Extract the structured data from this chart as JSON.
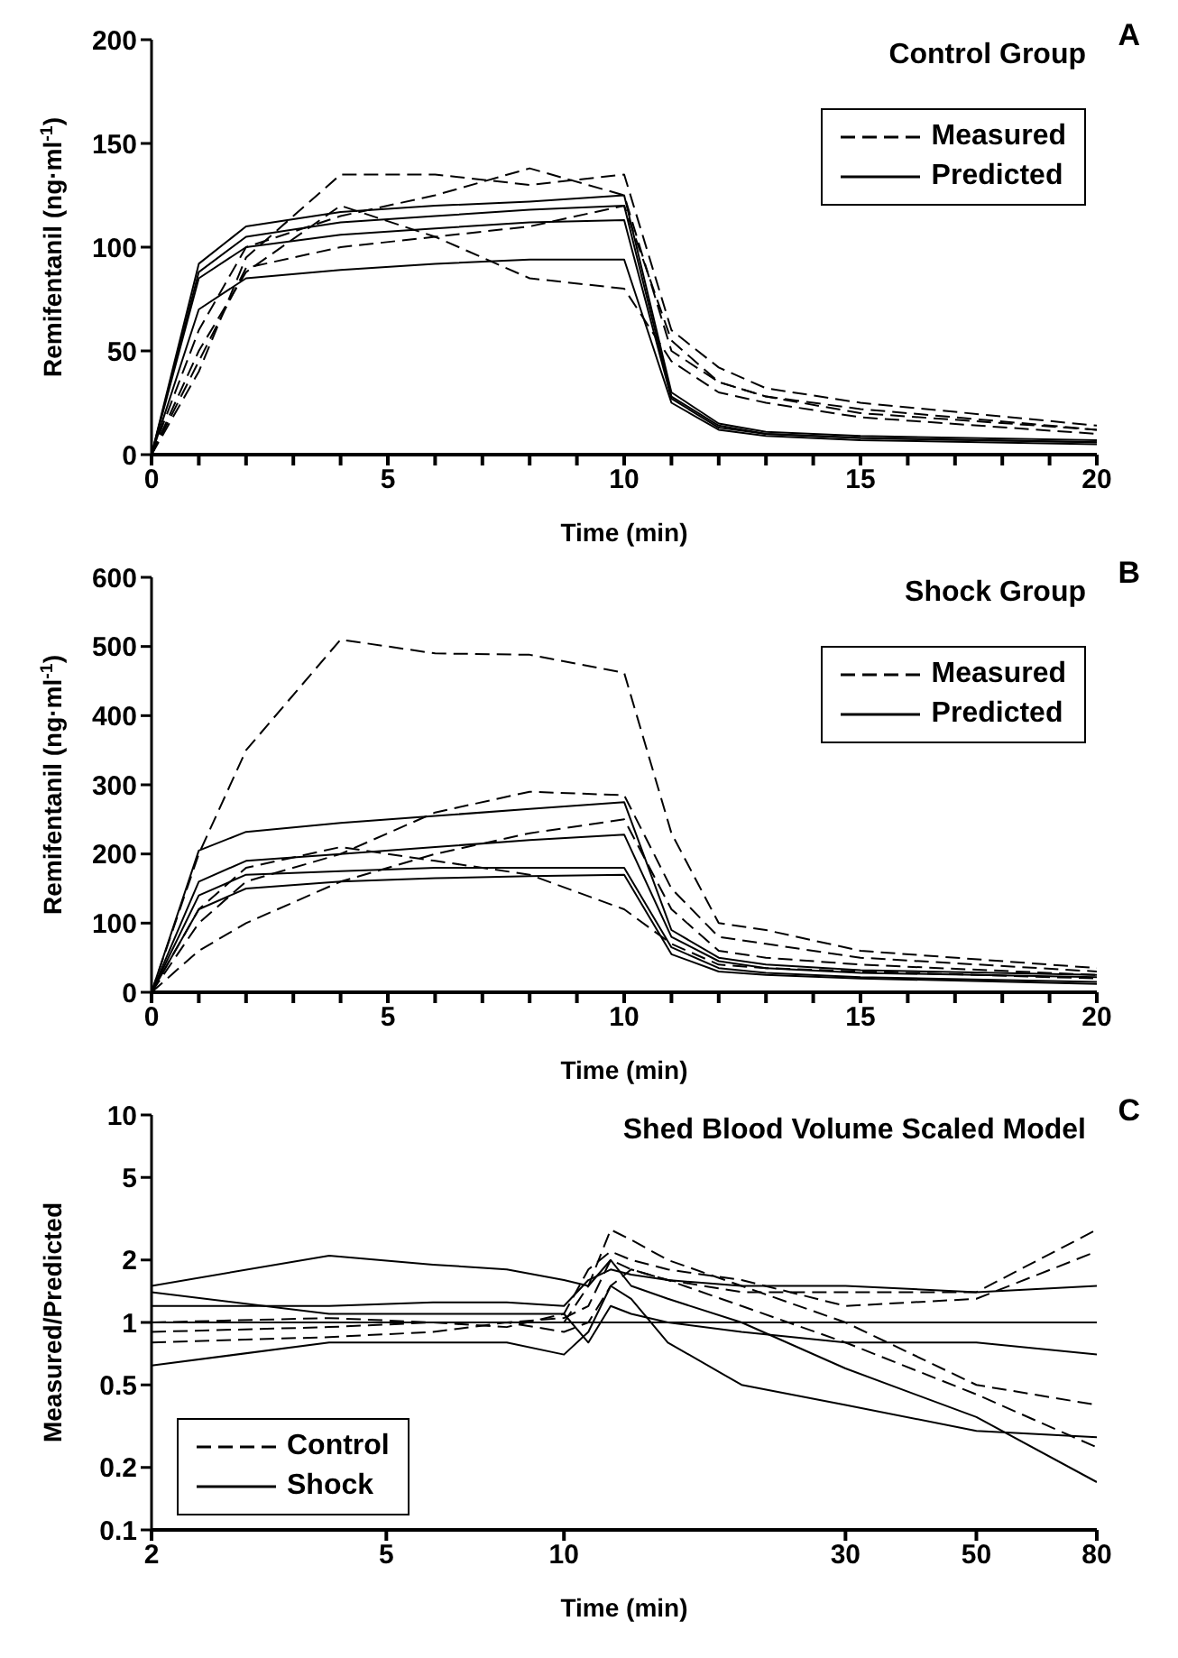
{
  "chart_data": [
    {
      "type": "line",
      "title": "Control Group",
      "xlabel": "Time (min)",
      "ylabel": "Remifentanil (ng·ml$^{-1}$)",
      "annotations": [
        "A"
      ],
      "legend": "top right",
      "marker": "none",
      "x": [
        0,
        1,
        2,
        4,
        6,
        8,
        10,
        11,
        12,
        13,
        15,
        20
      ],
      "xlim": [
        0,
        20
      ],
      "xticks": [
        0,
        {
          "value": 1,
          "label": null
        },
        {
          "value": 2,
          "label": null
        },
        {
          "value": 3,
          "label": null
        },
        {
          "value": 4,
          "label": null
        },
        5,
        {
          "value": 6,
          "label": null
        },
        {
          "value": 7,
          "label": null
        },
        {
          "value": 8,
          "label": null
        },
        {
          "value": 9,
          "label": null
        },
        10,
        {
          "value": 11,
          "label": null
        },
        {
          "value": 12,
          "label": null
        },
        {
          "value": 13,
          "label": null
        },
        {
          "value": 14,
          "label": null
        },
        15,
        {
          "value": 16,
          "label": null
        },
        {
          "value": 17,
          "label": null
        },
        {
          "value": 18,
          "label": null
        },
        {
          "value": 19,
          "label": null
        },
        20
      ],
      "ylim": [
        0,
        200
      ],
      "yticks": [
        0,
        50,
        100,
        150,
        200
      ],
      "series": [
        {
          "name": "Measured",
          "color": "#000000",
          "line_style": "dashed",
          "values": [
            0,
            45,
            90,
            100,
            105,
            110,
            120,
            55,
            35,
            28,
            20,
            12
          ]
        },
        {
          "color": "#000000",
          "line_style": "dashed",
          "values": [
            0,
            40,
            95,
            135,
            135,
            130,
            135,
            60,
            42,
            32,
            25,
            14
          ]
        },
        {
          "color": "#000000",
          "line_style": "dashed",
          "values": [
            0,
            50,
            88,
            120,
            105,
            85,
            80,
            45,
            30,
            25,
            18,
            10
          ]
        },
        {
          "color": "#000000",
          "line_style": "dashed",
          "values": [
            0,
            60,
            100,
            115,
            125,
            138,
            125,
            50,
            35,
            28,
            22,
            12
          ]
        },
        {
          "name": "Predicted",
          "color": "#000000",
          "line_style": "solid",
          "values": [
            0,
            92,
            110,
            117,
            120,
            122,
            125,
            30,
            15,
            11,
            9,
            7
          ]
        },
        {
          "color": "#000000",
          "line_style": "solid",
          "values": [
            0,
            88,
            105,
            112,
            115,
            118,
            120,
            28,
            14,
            10,
            8,
            6
          ]
        },
        {
          "color": "#000000",
          "line_style": "solid",
          "values": [
            0,
            70,
            85,
            89,
            92,
            94,
            94,
            25,
            12,
            9,
            7,
            5
          ]
        },
        {
          "color": "#000000",
          "line_style": "solid",
          "values": [
            0,
            85,
            100,
            106,
            109,
            112,
            113,
            27,
            13,
            10,
            8,
            6
          ]
        }
      ]
    },
    {
      "type": "line",
      "title": "Shock Group",
      "xlabel": "Time (min)",
      "ylabel": "Remifentanil (ng·ml$^{-1}$)",
      "annotations": [
        "B"
      ],
      "legend": "top right",
      "marker": "none",
      "x": [
        0,
        1,
        2,
        4,
        6,
        8,
        10,
        11,
        12,
        13,
        15,
        20
      ],
      "xlim": [
        0,
        20
      ],
      "xticks": [
        0,
        {
          "value": 1,
          "label": null
        },
        {
          "value": 2,
          "label": null
        },
        {
          "value": 3,
          "label": null
        },
        {
          "value": 4,
          "label": null
        },
        5,
        {
          "value": 6,
          "label": null
        },
        {
          "value": 7,
          "label": null
        },
        {
          "value": 8,
          "label": null
        },
        {
          "value": 9,
          "label": null
        },
        10,
        {
          "value": 11,
          "label": null
        },
        {
          "value": 12,
          "label": null
        },
        {
          "value": 13,
          "label": null
        },
        {
          "value": 14,
          "label": null
        },
        15,
        {
          "value": 16,
          "label": null
        },
        {
          "value": 17,
          "label": null
        },
        {
          "value": 18,
          "label": null
        },
        {
          "value": 19,
          "label": null
        },
        20
      ],
      "ylim": [
        0,
        600
      ],
      "yticks": [
        0,
        100,
        200,
        300,
        400,
        500,
        600
      ],
      "series": [
        {
          "name": "Measured",
          "color": "#000000",
          "line_style": "dashed",
          "values": [
            0,
            200,
            350,
            510,
            490,
            488,
            462,
            230,
            100,
            90,
            60,
            35
          ]
        },
        {
          "color": "#000000",
          "line_style": "dashed",
          "values": [
            0,
            100,
            160,
            200,
            260,
            290,
            285,
            150,
            80,
            70,
            50,
            30
          ]
        },
        {
          "color": "#000000",
          "line_style": "dashed",
          "values": [
            0,
            60,
            100,
            160,
            200,
            230,
            250,
            120,
            60,
            50,
            40,
            25
          ]
        },
        {
          "color": "#000000",
          "line_style": "dashed",
          "values": [
            0,
            120,
            180,
            210,
            190,
            170,
            120,
            70,
            40,
            35,
            30,
            20
          ]
        },
        {
          "name": "Predicted",
          "color": "#000000",
          "line_style": "solid",
          "values": [
            0,
            205,
            232,
            245,
            255,
            265,
            275,
            90,
            50,
            40,
            32,
            25
          ]
        },
        {
          "color": "#000000",
          "line_style": "solid",
          "values": [
            0,
            160,
            190,
            200,
            210,
            220,
            228,
            80,
            45,
            35,
            28,
            22
          ]
        },
        {
          "color": "#000000",
          "line_style": "solid",
          "values": [
            0,
            140,
            170,
            175,
            180,
            180,
            180,
            65,
            35,
            28,
            22,
            15
          ]
        },
        {
          "color": "#000000",
          "line_style": "solid",
          "values": [
            0,
            120,
            150,
            160,
            165,
            168,
            170,
            55,
            30,
            25,
            20,
            12
          ]
        }
      ]
    },
    {
      "type": "line",
      "title": "Shed Blood Volume Scaled Model",
      "xlabel": "Time (min)",
      "ylabel": "Measured/Predicted",
      "annotations": [
        "C"
      ],
      "legend": "bottom left",
      "marker": "none",
      "log": "xy",
      "x": [
        2,
        4,
        6,
        8,
        10,
        11,
        12,
        13,
        15,
        20,
        30,
        50,
        80
      ],
      "xlim": [
        2,
        80
      ],
      "xticks": [
        2,
        5,
        10,
        30,
        50,
        80
      ],
      "ylim": [
        0.1,
        10
      ],
      "yticks": [
        0.1,
        0.2,
        0.5,
        1,
        2,
        5,
        10
      ],
      "ref_lines": [
        {
          "axis": "y",
          "value": 1,
          "label": null,
          "color": "#000000"
        }
      ],
      "series": [
        {
          "name": "Control",
          "color": "#000000",
          "line_style": "dashed",
          "values": [
            1.0,
            1.0,
            1.0,
            1.0,
            1.0,
            1.5,
            2.8,
            2.5,
            2.0,
            1.5,
            1.0,
            0.5,
            0.4
          ]
        },
        {
          "color": "#000000",
          "line_style": "dashed",
          "values": [
            0.9,
            0.95,
            1.0,
            1.0,
            1.05,
            1.2,
            2.0,
            1.8,
            1.6,
            1.2,
            0.8,
            0.45,
            0.25
          ]
        },
        {
          "color": "#000000",
          "line_style": "dashed",
          "values": [
            0.8,
            0.85,
            0.9,
            1.0,
            0.9,
            1.0,
            1.5,
            1.8,
            1.6,
            1.4,
            1.4,
            1.4,
            2.8
          ]
        },
        {
          "color": "#000000",
          "line_style": "dashed",
          "values": [
            1.0,
            1.05,
            1.0,
            0.95,
            1.1,
            1.8,
            2.2,
            2.0,
            1.8,
            1.6,
            1.2,
            1.3,
            2.2
          ]
        },
        {
          "name": "Shock",
          "color": "#000000",
          "line_style": "solid",
          "values": [
            1.5,
            2.1,
            1.9,
            1.8,
            1.6,
            1.5,
            2.0,
            1.5,
            1.3,
            1.0,
            0.6,
            0.35,
            0.17
          ]
        },
        {
          "color": "#000000",
          "line_style": "solid",
          "values": [
            1.4,
            1.1,
            1.1,
            1.1,
            1.1,
            0.8,
            1.2,
            1.1,
            1.0,
            0.9,
            0.8,
            0.8,
            0.7
          ]
        },
        {
          "color": "#000000",
          "line_style": "solid",
          "values": [
            0.62,
            0.8,
            0.8,
            0.8,
            0.7,
            0.9,
            1.5,
            1.3,
            0.8,
            0.5,
            0.4,
            0.3,
            0.28
          ]
        },
        {
          "color": "#000000",
          "line_style": "solid",
          "values": [
            1.2,
            1.2,
            1.25,
            1.25,
            1.2,
            1.6,
            1.8,
            1.7,
            1.6,
            1.5,
            1.5,
            1.4,
            1.5
          ]
        }
      ]
    }
  ]
}
